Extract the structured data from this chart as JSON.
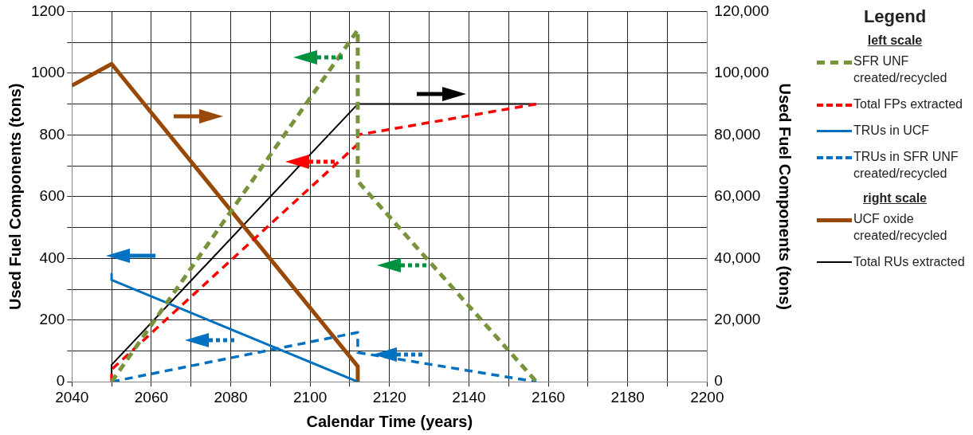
{
  "chart_data": {
    "type": "line",
    "xlabel": "Calendar Time (years)",
    "ylabel": "Used Fuel Components (tons)",
    "y2label": "Used Fuel Components (tons)",
    "legend_title": "Legend",
    "legend": "right",
    "annotations": [
      "left scale",
      "right scale"
    ],
    "grid": true,
    "marker": "none",
    "xlim": [
      2040,
      2200
    ],
    "xticks": [
      2040,
      {
        "value": 2050,
        "label": null
      },
      2060,
      {
        "value": 2070,
        "label": null
      },
      2080,
      {
        "value": 2090,
        "label": null
      },
      2100,
      {
        "value": 2110,
        "label": null
      },
      2120,
      {
        "value": 2130,
        "label": null
      },
      2140,
      {
        "value": 2150,
        "label": null
      },
      2160,
      {
        "value": 2170,
        "label": null
      },
      2180,
      {
        "value": 2190,
        "label": null
      },
      2200
    ],
    "ylim": [
      0,
      1200
    ],
    "yticks": [
      0,
      {
        "value": 100,
        "label": null
      },
      200,
      {
        "value": 300,
        "label": null
      },
      400,
      {
        "value": 500,
        "label": null
      },
      600,
      {
        "value": 700,
        "label": null
      },
      800,
      {
        "value": 900,
        "label": null
      },
      1000,
      {
        "value": 1100,
        "label": null
      },
      1200
    ],
    "y2lim": [
      0,
      120000
    ],
    "y2ticks": [
      0,
      {
        "value": 20000,
        "label": "20,000"
      },
      {
        "value": 40000,
        "label": "40,000"
      },
      {
        "value": 60000,
        "label": "60,000"
      },
      {
        "value": 80000,
        "label": "80,000"
      },
      {
        "value": 100000,
        "label": "100,000"
      },
      {
        "value": 120000,
        "label": "120,000"
      }
    ],
    "series": [
      {
        "name": "SFR UNF created/recycled",
        "color": "#77933c",
        "line_style": "dashed",
        "x": [
          2050,
          2112,
          2112,
          2157
        ],
        "values": [
          0,
          1140,
          650,
          0
        ]
      },
      {
        "name": "Total FPs extracted",
        "color": "#ff0000",
        "line_style": "dashed",
        "x": [
          2050,
          2050,
          2112,
          2112,
          2157
        ],
        "values": [
          0,
          40,
          770,
          800,
          900
        ]
      },
      {
        "name": "TRUs in UCF",
        "color": "#0070c0",
        "line_style": "solid",
        "x": [
          2050,
          2050,
          2112
        ],
        "values": [
          350,
          330,
          0
        ]
      },
      {
        "name": "TRUs in SFR UNF created/recycled",
        "color": "#0070c0",
        "line_style": "dashed",
        "x": [
          2050,
          2112,
          2112,
          2157
        ],
        "values": [
          0,
          160,
          95,
          0
        ]
      },
      {
        "name": "UCF oxide created/recycled",
        "color": "#984807",
        "line_style": "solid",
        "axis": "y2",
        "x": [
          2040,
          2050,
          2112,
          2112
        ],
        "values": [
          96000,
          103000,
          5000,
          0
        ]
      },
      {
        "name": "Total RUs extracted",
        "color": "#000000",
        "line_style": "solid",
        "axis": "y2",
        "x": [
          2050,
          2050,
          2112,
          2157
        ],
        "values": [
          0,
          5500,
          90000,
          90000
        ]
      }
    ]
  }
}
